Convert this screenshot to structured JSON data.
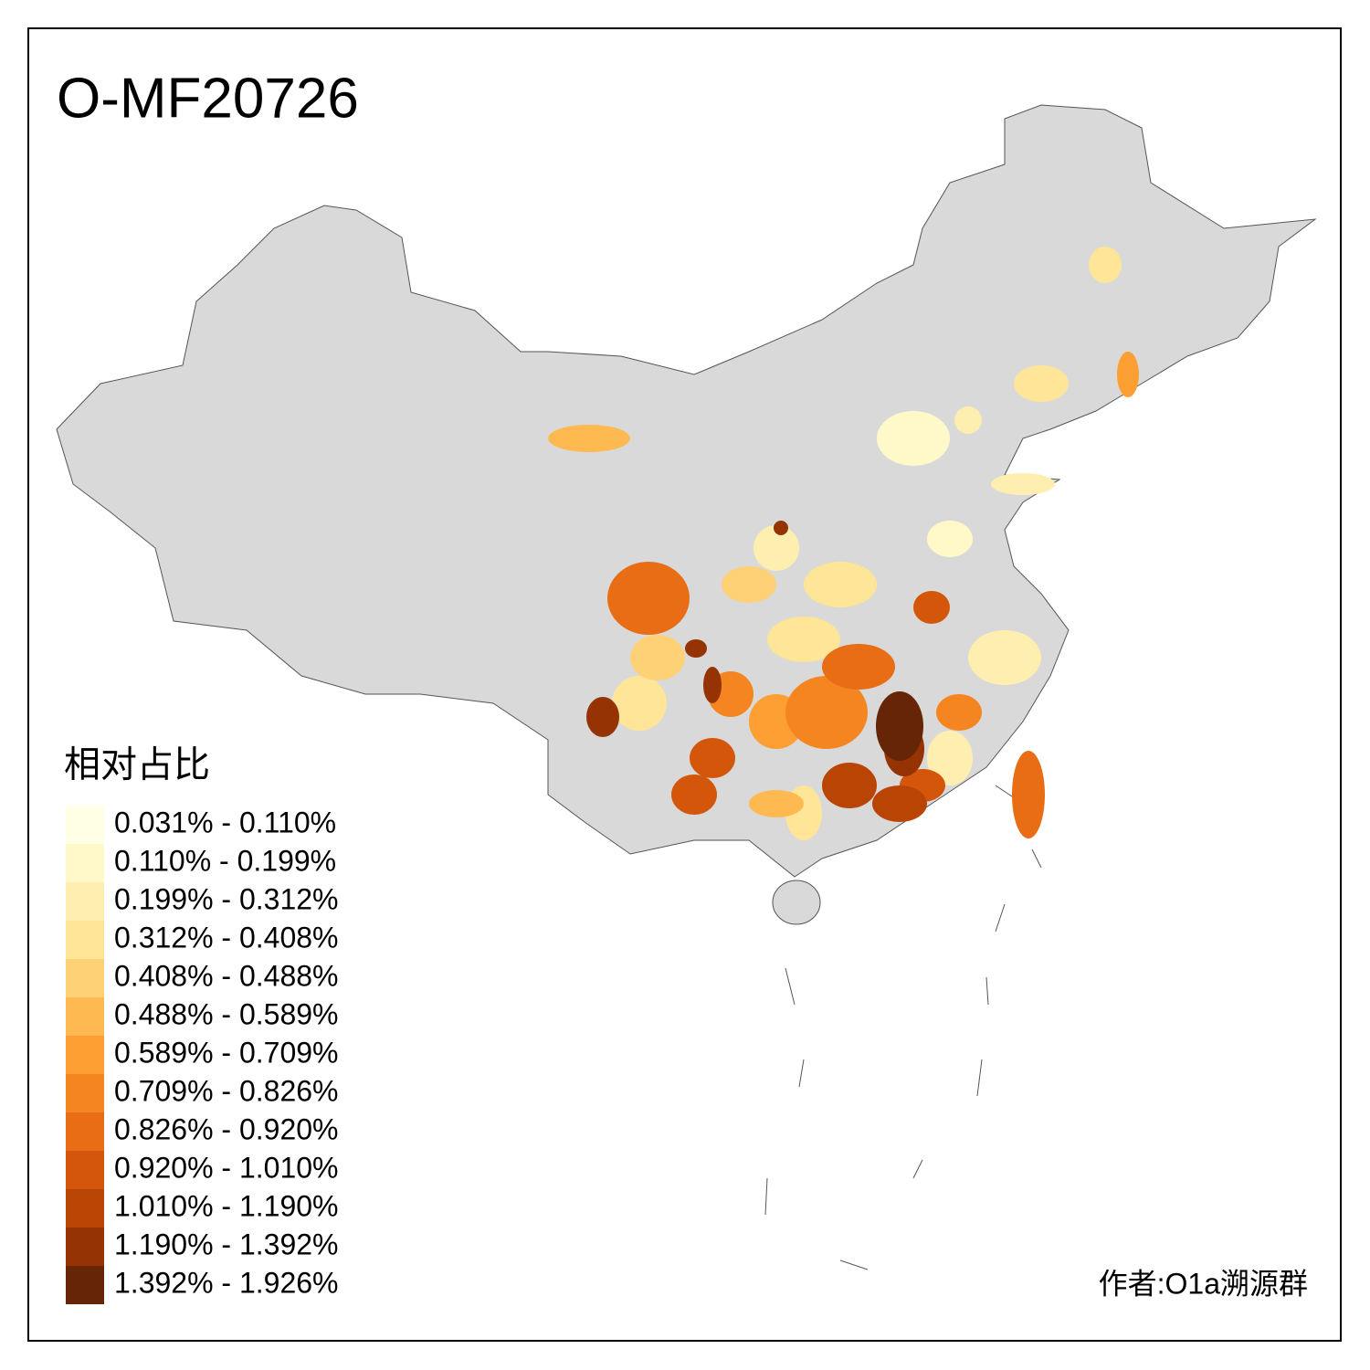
{
  "title": "O-MF20726",
  "legend": {
    "title": "相对占比",
    "items": [
      {
        "label": "0.031% - 0.110%",
        "color": "#ffffe5"
      },
      {
        "label": "0.110% - 0.199%",
        "color": "#fff8c9"
      },
      {
        "label": "0.199% - 0.312%",
        "color": "#feefb0"
      },
      {
        "label": "0.312% - 0.408%",
        "color": "#fee597"
      },
      {
        "label": "0.408% - 0.488%",
        "color": "#fed176"
      },
      {
        "label": "0.488% - 0.589%",
        "color": "#feba50"
      },
      {
        "label": "0.589% - 0.709%",
        "color": "#fd9f33"
      },
      {
        "label": "0.709% - 0.826%",
        "color": "#f58521"
      },
      {
        "label": "0.826% - 0.920%",
        "color": "#e86d14"
      },
      {
        "label": "0.920% - 1.010%",
        "color": "#d4560a"
      },
      {
        "label": "1.010% - 1.190%",
        "color": "#ba4404"
      },
      {
        "label": "1.190% - 1.392%",
        "color": "#953304"
      },
      {
        "label": "1.392% - 1.926%",
        "color": "#662506"
      }
    ]
  },
  "credit": "作者:O1a溯源群"
}
